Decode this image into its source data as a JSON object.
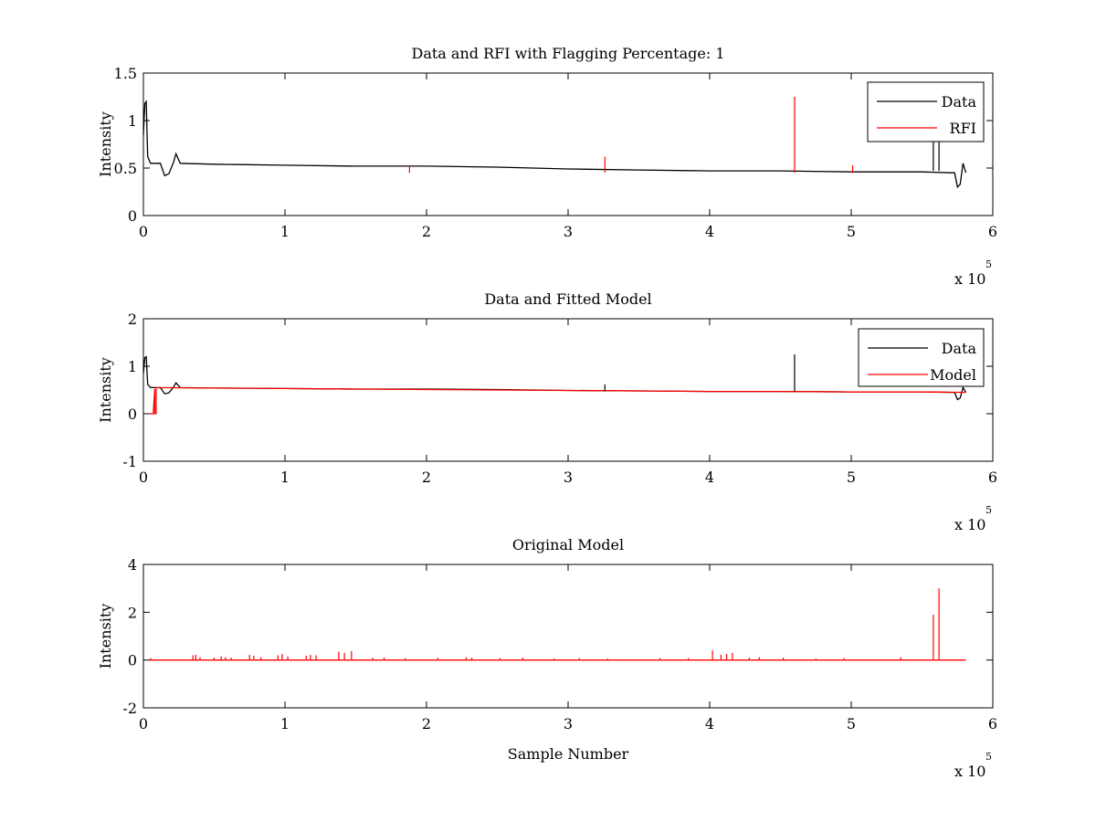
{
  "colors": {
    "data": "#000000",
    "rfi": "#ff0000",
    "model": "#ff0000",
    "axes": "#000000",
    "background": "#ffffff"
  },
  "chart_data": [
    {
      "type": "line",
      "title": "Data and RFI with Flagging Percentage: 1",
      "xlabel": "",
      "ylabel": "Intensity",
      "xlim": [
        0,
        6
      ],
      "ylim": [
        0,
        1.5
      ],
      "x_ticks": [
        "0",
        "1",
        "2",
        "3",
        "4",
        "5",
        "6"
      ],
      "y_ticks": [
        "0",
        "0.5",
        "1",
        "1.5"
      ],
      "x_exponent": {
        "base": "x 10",
        "power": "5"
      },
      "legend": {
        "position": "top-right",
        "entries": [
          "Data",
          "RFI"
        ]
      },
      "series": [
        {
          "name": "Data",
          "color": "#000000",
          "x": [
            0,
            0.01,
            0.02,
            0.03,
            0.05,
            0.08,
            0.12,
            0.15,
            0.18,
            0.21,
            0.23,
            0.26,
            0.5,
            1.0,
            1.5,
            2.0,
            2.5,
            3.0,
            3.5,
            4.0,
            4.5,
            5.0,
            5.5,
            5.7,
            5.73,
            5.75,
            5.77,
            5.79,
            5.81
          ],
          "y": [
            0.85,
            1.18,
            1.2,
            0.62,
            0.55,
            0.55,
            0.55,
            0.42,
            0.44,
            0.55,
            0.65,
            0.55,
            0.54,
            0.53,
            0.52,
            0.52,
            0.51,
            0.49,
            0.48,
            0.47,
            0.47,
            0.46,
            0.46,
            0.45,
            0.45,
            0.3,
            0.33,
            0.55,
            0.45
          ]
        },
        {
          "name": "RFI",
          "color": "#ff0000",
          "x": [
            1.88,
            3.26,
            4.6,
            5.01
          ],
          "y": [
            0.53,
            0.62,
            1.25,
            0.53
          ]
        }
      ],
      "data_spikes": [
        {
          "x": 5.58,
          "y": 0.78
        },
        {
          "x": 5.62,
          "y": 0.78
        }
      ]
    },
    {
      "type": "line",
      "title": "Data and Fitted Model",
      "xlabel": "",
      "ylabel": "Intensity",
      "xlim": [
        0,
        6
      ],
      "ylim": [
        -1,
        2
      ],
      "x_ticks": [
        "0",
        "1",
        "2",
        "3",
        "4",
        "5",
        "6"
      ],
      "y_ticks": [
        "-1",
        "0",
        "1",
        "2"
      ],
      "x_exponent": {
        "base": "x 10",
        "power": "5"
      },
      "legend": {
        "position": "top-right",
        "entries": [
          "Data",
          "Model"
        ]
      },
      "series": [
        {
          "name": "Data",
          "color": "#000000",
          "x": [
            0,
            0.01,
            0.02,
            0.03,
            0.05,
            0.08,
            0.12,
            0.15,
            0.18,
            0.21,
            0.23,
            0.26,
            0.5,
            1.0,
            1.5,
            2.0,
            2.5,
            3.0,
            3.5,
            4.0,
            4.5,
            5.0,
            5.5,
            5.7,
            5.73,
            5.75,
            5.77,
            5.79,
            5.81
          ],
          "y": [
            0.85,
            1.18,
            1.2,
            0.62,
            0.55,
            0.55,
            0.55,
            0.42,
            0.44,
            0.55,
            0.65,
            0.55,
            0.54,
            0.53,
            0.52,
            0.52,
            0.51,
            0.49,
            0.48,
            0.47,
            0.47,
            0.46,
            0.46,
            0.45,
            0.45,
            0.3,
            0.33,
            0.55,
            0.45
          ]
        },
        {
          "name": "Model",
          "color": "#ff0000",
          "x": [
            0.04,
            0.07,
            0.08,
            0.08,
            0.09,
            0.09,
            0.5,
            1.0,
            1.5,
            2.0,
            2.5,
            3.0,
            3.5,
            4.0,
            4.5,
            5.0,
            5.5,
            5.81
          ],
          "y": [
            0,
            0,
            0.52,
            0,
            0,
            0.55,
            0.54,
            0.53,
            0.52,
            0.51,
            0.5,
            0.49,
            0.48,
            0.47,
            0.47,
            0.46,
            0.46,
            0.45
          ]
        }
      ],
      "data_spikes": [
        {
          "x": 3.26,
          "y": 0.62
        },
        {
          "x": 4.6,
          "y": 1.25
        }
      ]
    },
    {
      "type": "line",
      "title": "Original Model",
      "xlabel": "Sample Number",
      "ylabel": "Intensity",
      "xlim": [
        0,
        6
      ],
      "ylim": [
        -2,
        4
      ],
      "x_ticks": [
        "0",
        "1",
        "2",
        "3",
        "4",
        "5",
        "6"
      ],
      "y_ticks": [
        "-2",
        "0",
        "2",
        "4"
      ],
      "x_exponent": {
        "base": "x 10",
        "power": "5"
      },
      "series": [
        {
          "color": "#ff0000",
          "x": [
            0.04,
            5.81
          ],
          "y": [
            0,
            0
          ]
        }
      ],
      "spikes": [
        {
          "x": 0.05,
          "y": 0.08
        },
        {
          "x": 0.35,
          "y": 0.2
        },
        {
          "x": 0.37,
          "y": 0.22
        },
        {
          "x": 0.4,
          "y": 0.12
        },
        {
          "x": 0.5,
          "y": 0.1
        },
        {
          "x": 0.55,
          "y": 0.15
        },
        {
          "x": 0.58,
          "y": 0.12
        },
        {
          "x": 0.62,
          "y": 0.1
        },
        {
          "x": 0.75,
          "y": 0.22
        },
        {
          "x": 0.78,
          "y": 0.18
        },
        {
          "x": 0.83,
          "y": 0.12
        },
        {
          "x": 0.95,
          "y": 0.2
        },
        {
          "x": 0.98,
          "y": 0.25
        },
        {
          "x": 1.02,
          "y": 0.15
        },
        {
          "x": 1.15,
          "y": 0.18
        },
        {
          "x": 1.18,
          "y": 0.22
        },
        {
          "x": 1.22,
          "y": 0.2
        },
        {
          "x": 1.38,
          "y": 0.35
        },
        {
          "x": 1.42,
          "y": 0.3
        },
        {
          "x": 1.47,
          "y": 0.38
        },
        {
          "x": 1.62,
          "y": 0.1
        },
        {
          "x": 1.7,
          "y": 0.1
        },
        {
          "x": 1.85,
          "y": 0.08
        },
        {
          "x": 2.08,
          "y": 0.1
        },
        {
          "x": 2.28,
          "y": 0.12
        },
        {
          "x": 2.32,
          "y": 0.1
        },
        {
          "x": 2.52,
          "y": 0.08
        },
        {
          "x": 2.68,
          "y": 0.1
        },
        {
          "x": 2.9,
          "y": 0.06
        },
        {
          "x": 3.08,
          "y": 0.08
        },
        {
          "x": 3.28,
          "y": 0.06
        },
        {
          "x": 3.65,
          "y": 0.08
        },
        {
          "x": 3.85,
          "y": 0.08
        },
        {
          "x": 4.02,
          "y": 0.4
        },
        {
          "x": 4.08,
          "y": 0.22
        },
        {
          "x": 4.12,
          "y": 0.25
        },
        {
          "x": 4.16,
          "y": 0.3
        },
        {
          "x": 4.28,
          "y": 0.1
        },
        {
          "x": 4.35,
          "y": 0.12
        },
        {
          "x": 4.52,
          "y": 0.1
        },
        {
          "x": 4.75,
          "y": 0.06
        },
        {
          "x": 4.95,
          "y": 0.08
        },
        {
          "x": 5.35,
          "y": 0.12
        },
        {
          "x": 5.58,
          "y": 1.9
        },
        {
          "x": 5.62,
          "y": 3.0
        }
      ]
    }
  ]
}
